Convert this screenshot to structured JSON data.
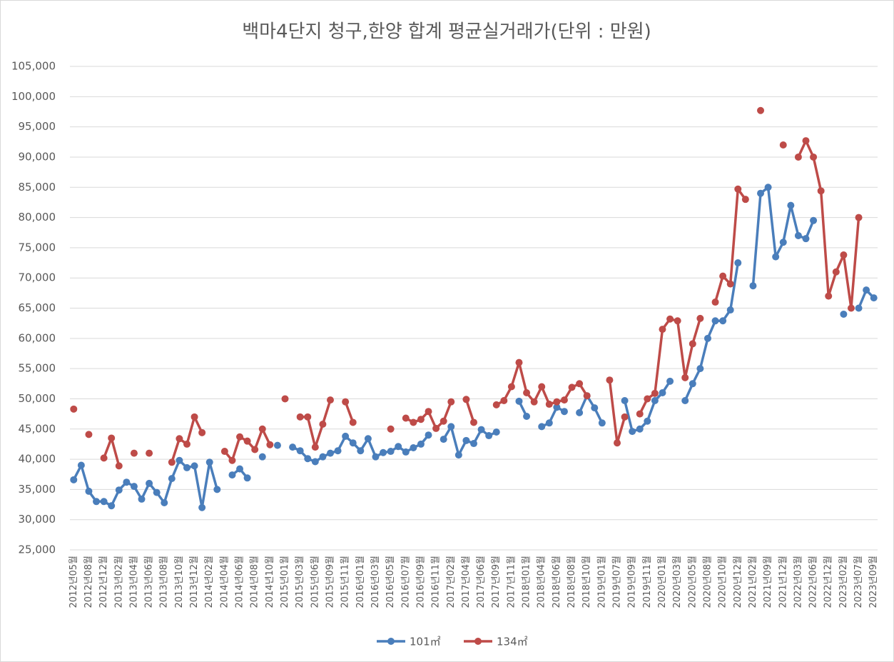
{
  "chart_data": {
    "type": "line",
    "title": "백마4단지 청구,한양 합계 평균실거래가(단위 : 만원)",
    "categories": [
      "2012년05월",
      null,
      "2012년08월",
      null,
      "2012년12월",
      null,
      "2013년02월",
      null,
      "2013년04월",
      null,
      "2013년06월",
      null,
      "2013년08월",
      null,
      "2013년10월",
      null,
      "2013년12월",
      null,
      "2014년02월",
      null,
      "2014년04월",
      null,
      "2014년06월",
      null,
      "2014년08월",
      null,
      "2014년10월",
      null,
      "2015년01월",
      null,
      "2015년03월",
      null,
      "2015년06월",
      null,
      "2015년09월",
      null,
      "2015년11월",
      null,
      "2016년01월",
      null,
      "2016년03월",
      null,
      "2016년05월",
      null,
      "2016년07월",
      null,
      "2016년09월",
      null,
      "2016년11월",
      null,
      "2017년02월",
      null,
      "2017년04월",
      null,
      "2017년06월",
      null,
      "2017년09월",
      null,
      "2017년11월",
      null,
      "2018년01월",
      null,
      "2018년04월",
      null,
      "2018년06월",
      null,
      "2018년08월",
      null,
      "2018년10월",
      null,
      "2019년01월",
      null,
      "2019년07월",
      null,
      "2019년09월",
      null,
      "2019년11월",
      null,
      "2020년01월",
      null,
      "2020년03월",
      null,
      "2020년05월",
      null,
      "2020년08월",
      null,
      "2020년10월",
      null,
      "2020년12월",
      null,
      "2021년02월",
      null,
      "2021년09월",
      null,
      "2021년12월",
      null,
      "2022년03월",
      null,
      "2022년06월",
      null,
      "2022년12월",
      null,
      "2023년02월",
      null,
      "2023년07월",
      null,
      "2023년09월"
    ],
    "series": [
      {
        "name": "101㎡",
        "color": "#4a7ebb",
        "values": [
          36600,
          39000,
          34700,
          33000,
          33000,
          32300,
          34900,
          36200,
          35500,
          33400,
          36000,
          34500,
          32800,
          36800,
          39800,
          38600,
          38900,
          32000,
          39500,
          35000,
          null,
          37400,
          38400,
          36900,
          null,
          40400,
          null,
          42300,
          null,
          42000,
          41400,
          40100,
          39600,
          40400,
          41000,
          41400,
          43800,
          42700,
          41400,
          43400,
          40400,
          41100,
          41300,
          42100,
          41200,
          41900,
          42500,
          44000,
          null,
          43300,
          45400,
          40700,
          43100,
          42600,
          44900,
          43900,
          44500,
          null,
          null,
          49600,
          47100,
          null,
          45400,
          46000,
          48600,
          47900,
          null,
          47700,
          50500,
          48500,
          46000,
          null,
          null,
          49700,
          44600,
          45000,
          46300,
          49700,
          51000,
          52900,
          null,
          49700,
          52500,
          55000,
          60000,
          62900,
          62900,
          64700,
          72500,
          null,
          68700,
          84000,
          85000,
          73500,
          75900,
          82000,
          77000,
          76500,
          79500,
          null,
          null,
          null,
          64000,
          null,
          65000,
          68000,
          66700
        ]
      },
      {
        "name": "134㎡",
        "color": "#be4b48",
        "values": [
          48300,
          null,
          44100,
          null,
          40200,
          43500,
          38900,
          null,
          41000,
          null,
          41000,
          null,
          null,
          39500,
          43400,
          42500,
          47000,
          44400,
          null,
          null,
          41300,
          39800,
          43700,
          43000,
          41600,
          45000,
          42400,
          null,
          50000,
          null,
          47000,
          47000,
          42000,
          45800,
          49800,
          null,
          49500,
          46100,
          null,
          null,
          null,
          null,
          45000,
          null,
          46800,
          46100,
          46600,
          47900,
          45100,
          46300,
          49500,
          null,
          49900,
          46100,
          null,
          null,
          49000,
          49700,
          52000,
          56000,
          51000,
          49500,
          52000,
          49100,
          49500,
          49800,
          51900,
          52500,
          50500,
          null,
          null,
          53100,
          42700,
          47000,
          null,
          47500,
          50000,
          50900,
          61500,
          63200,
          62900,
          53500,
          59100,
          63300,
          null,
          66000,
          70300,
          69000,
          84700,
          83000,
          null,
          97700,
          null,
          null,
          92000,
          null,
          90000,
          92700,
          90000,
          84400,
          67000,
          71000,
          73800,
          65000,
          80000,
          null,
          null
        ]
      }
    ],
    "ylim": [
      25000,
      105000
    ],
    "yticks": [
      {
        "value": 25000,
        "label": "25,000"
      },
      {
        "value": 30000,
        "label": "30,000"
      },
      {
        "value": 35000,
        "label": "35,000"
      },
      {
        "value": 40000,
        "label": "40,000"
      },
      {
        "value": 45000,
        "label": "45,000"
      },
      {
        "value": 50000,
        "label": "50,000"
      },
      {
        "value": 55000,
        "label": "55,000"
      },
      {
        "value": 60000,
        "label": "60,000"
      },
      {
        "value": 65000,
        "label": "65,000"
      },
      {
        "value": 70000,
        "label": "70,000"
      },
      {
        "value": 75000,
        "label": "75,000"
      },
      {
        "value": 80000,
        "label": "80,000"
      },
      {
        "value": 85000,
        "label": "85,000"
      },
      {
        "value": 90000,
        "label": "90,000"
      },
      {
        "value": 95000,
        "label": "95,000"
      },
      {
        "value": 100000,
        "label": "100,000"
      },
      {
        "value": 105000,
        "label": "105,000"
      }
    ],
    "grid": true,
    "legend": "bottom"
  }
}
